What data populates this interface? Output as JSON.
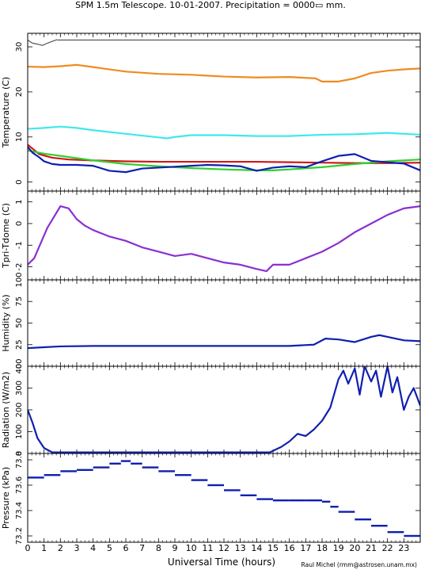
{
  "title": "SPM 1.5m Telescope. 10-01-2007. Precipitation = 0000▭ mm.",
  "credit": "Raul Michel (rmm@astrosen.unam.mx)",
  "colors": {
    "gray": "#555555",
    "orange": "#f08a20",
    "cyan": "#40e8ec",
    "red": "#d01818",
    "blue": "#1020b0",
    "green": "#30d030",
    "purple": "#8a30d0"
  },
  "chart_data": [
    {
      "type": "line",
      "ylabel": "Temperature (C)",
      "xlim": [
        0,
        24
      ],
      "ylim": [
        -2,
        33
      ],
      "yticks": [
        0,
        10,
        20,
        30
      ],
      "series": [
        {
          "color_key": "gray",
          "x": [
            0,
            0.3,
            0.6,
            0.9,
            1.2,
            1.5,
            1.8
          ],
          "y": [
            31.5,
            30.8,
            30.6,
            30.3,
            30.8,
            31.2,
            31.6
          ]
        },
        {
          "color_key": "gray",
          "x": [
            1.8,
            24
          ],
          "y": [
            31.5,
            31.5
          ]
        },
        {
          "color_key": "orange",
          "x": [
            0,
            1,
            2,
            3,
            4,
            6,
            8,
            10,
            12,
            14,
            16,
            17.6,
            18,
            19,
            20,
            21,
            22,
            23,
            24
          ],
          "y": [
            25.6,
            25.5,
            25.7,
            26.0,
            25.5,
            24.5,
            24.0,
            23.8,
            23.4,
            23.2,
            23.3,
            23.0,
            22.3,
            22.3,
            23.0,
            24.2,
            24.7,
            25.0,
            25.2
          ]
        },
        {
          "color_key": "cyan",
          "x": [
            0,
            1,
            2,
            3,
            4,
            6,
            8,
            8.5,
            9,
            10,
            12,
            14,
            16,
            18,
            20,
            22,
            24
          ],
          "y": [
            11.8,
            12.0,
            12.3,
            12.0,
            11.5,
            10.7,
            9.9,
            9.7,
            10.0,
            10.4,
            10.4,
            10.2,
            10.2,
            10.5,
            10.6,
            10.9,
            10.5
          ]
        },
        {
          "color_key": "red",
          "x": [
            0,
            0.3,
            0.7,
            1.5,
            2.5,
            4,
            6,
            8,
            10,
            12,
            14,
            16,
            18,
            20,
            22,
            24
          ],
          "y": [
            8.3,
            7.4,
            6.2,
            5.4,
            5.0,
            4.8,
            4.6,
            4.5,
            4.5,
            4.5,
            4.5,
            4.4,
            4.3,
            4.2,
            4.2,
            4.3
          ]
        },
        {
          "color_key": "green",
          "x": [
            0,
            1,
            2,
            4,
            6,
            8,
            10,
            12,
            14,
            15,
            16,
            18,
            20,
            22,
            24
          ],
          "y": [
            7.0,
            6.3,
            5.8,
            4.8,
            4.0,
            3.5,
            3.1,
            2.8,
            2.6,
            2.6,
            2.8,
            3.3,
            4.0,
            4.6,
            5.0
          ]
        },
        {
          "color_key": "blue",
          "x": [
            0,
            0.3,
            0.7,
            1,
            1.5,
            2,
            3,
            4,
            5,
            6,
            7,
            8,
            9,
            10,
            11,
            12,
            13,
            14,
            15,
            16,
            17,
            18,
            19,
            20,
            21,
            22,
            23,
            24
          ],
          "y": [
            7.8,
            6.5,
            5.5,
            4.6,
            4.0,
            3.8,
            3.8,
            3.6,
            2.5,
            2.2,
            3.0,
            3.2,
            3.4,
            3.6,
            3.8,
            3.7,
            3.5,
            2.5,
            3.2,
            3.5,
            3.3,
            4.6,
            5.8,
            6.2,
            4.7,
            4.4,
            4.1,
            2.6
          ]
        }
      ]
    },
    {
      "type": "line",
      "ylabel": "Tpri-Tdome (C)",
      "xlim": [
        0,
        24
      ],
      "ylim": [
        -2.6,
        1.5
      ],
      "yticks": [
        -2,
        -1,
        0,
        1
      ],
      "series": [
        {
          "color_key": "purple",
          "x": [
            0,
            0.4,
            0.8,
            1.2,
            1.6,
            2.0,
            2.5,
            3,
            3.5,
            4,
            5,
            6,
            7,
            8,
            9,
            10,
            11,
            12,
            13,
            14,
            14.6,
            15,
            16,
            17,
            18,
            19,
            20,
            21,
            22,
            23,
            24
          ],
          "y": [
            -1.9,
            -1.6,
            -0.9,
            -0.2,
            0.3,
            0.8,
            0.7,
            0.2,
            -0.1,
            -0.3,
            -0.6,
            -0.8,
            -1.1,
            -1.3,
            -1.5,
            -1.4,
            -1.6,
            -1.8,
            -1.9,
            -2.1,
            -2.2,
            -1.9,
            -1.9,
            -1.6,
            -1.3,
            -0.9,
            -0.4,
            0.0,
            0.4,
            0.7,
            0.8
          ]
        }
      ]
    },
    {
      "type": "line",
      "ylabel": "Humidity (%)",
      "xlim": [
        0,
        24
      ],
      "ylim": [
        0,
        100
      ],
      "yticks": [
        0,
        25,
        50,
        75,
        100
      ],
      "series": [
        {
          "color_key": "blue",
          "x": [
            0,
            1,
            2,
            4,
            8,
            12,
            16,
            17.5,
            18.2,
            19,
            20,
            21,
            21.5,
            22,
            23,
            24
          ],
          "y": [
            21,
            22,
            23,
            23.5,
            23.5,
            23.5,
            23.5,
            25,
            32,
            31,
            28,
            34,
            36,
            34,
            30,
            29
          ]
        }
      ]
    },
    {
      "type": "line",
      "ylabel": "Radiation (W/m2)",
      "xlim": [
        0,
        24
      ],
      "ylim": [
        0,
        400
      ],
      "yticks": [
        0,
        100,
        200,
        300,
        400
      ],
      "series": [
        {
          "color_key": "blue",
          "x": [
            0,
            0.3,
            0.6,
            1,
            1.5,
            2,
            4,
            6,
            8,
            10,
            12,
            14,
            14.8,
            15.5,
            16,
            16.5,
            17,
            17.5,
            18,
            18.5,
            19,
            19.3,
            19.6,
            20,
            20.3,
            20.6,
            21,
            21.3,
            21.6,
            22,
            22.3,
            22.6,
            23,
            23.3,
            23.6,
            24
          ],
          "y": [
            200,
            140,
            70,
            25,
            5,
            5,
            5,
            5,
            5,
            5,
            5,
            5,
            5,
            30,
            55,
            90,
            80,
            110,
            150,
            210,
            340,
            380,
            320,
            390,
            270,
            400,
            330,
            380,
            260,
            400,
            280,
            350,
            200,
            260,
            300,
            220
          ]
        }
      ]
    },
    {
      "type": "scatter",
      "ylabel": "Pressure (kPa)",
      "xlim": [
        0,
        24
      ],
      "ylim": [
        73.15,
        73.85
      ],
      "yticks": [
        73.2,
        73.4,
        73.6,
        73.8
      ],
      "series": [
        {
          "color_key": "blue",
          "x": [
            0,
            1,
            2,
            3,
            4,
            5,
            5.7,
            6.3,
            7,
            8,
            9,
            10,
            11,
            12,
            13,
            14,
            15,
            16,
            17,
            18,
            18.5,
            19,
            20,
            21,
            22,
            23,
            24
          ],
          "y": [
            73.66,
            73.68,
            73.71,
            73.72,
            73.74,
            73.77,
            73.79,
            73.77,
            73.74,
            73.71,
            73.68,
            73.64,
            73.6,
            73.56,
            73.52,
            73.49,
            73.48,
            73.48,
            73.48,
            73.47,
            73.43,
            73.39,
            73.33,
            73.28,
            73.23,
            73.2,
            73.21
          ]
        }
      ]
    }
  ],
  "xaxis": {
    "label": "Universal Time (hours)",
    "ticks": [
      0,
      1,
      2,
      3,
      4,
      5,
      6,
      7,
      8,
      9,
      10,
      11,
      12,
      13,
      14,
      15,
      16,
      17,
      18,
      19,
      20,
      21,
      22,
      23
    ]
  }
}
